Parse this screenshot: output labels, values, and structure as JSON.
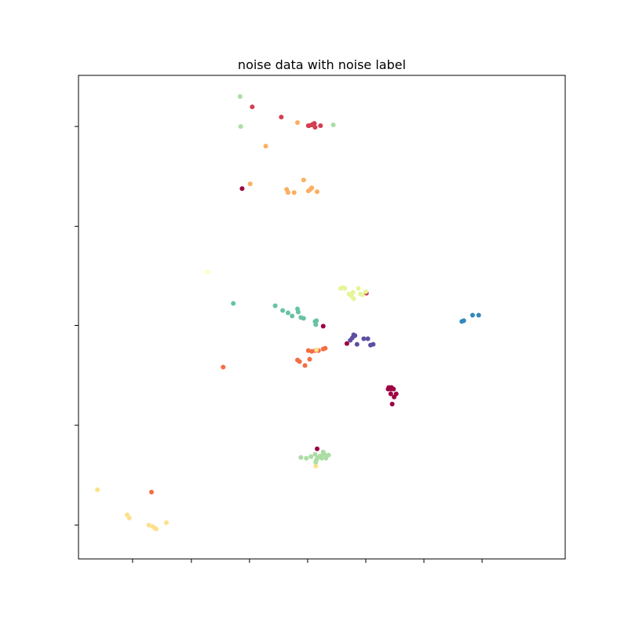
{
  "chart_data": {
    "type": "scatter",
    "title": "noise data with noise label",
    "xlabel": "",
    "ylabel": "",
    "xlim": [
      0,
      720
    ],
    "ylim": [
      0,
      615
    ],
    "grid": false,
    "legend": "none",
    "xticks": [
      80,
      167,
      253,
      339,
      425,
      511,
      597
    ],
    "yticks": [
      43,
      170,
      297,
      423,
      550
    ],
    "series": [
      {
        "color": "#9e0142",
        "points": [
          [
            242,
            471
          ],
          [
            362,
            296
          ],
          [
            397,
            274
          ],
          [
            458,
            216
          ],
          [
            459,
            218
          ],
          [
            462,
            216
          ],
          [
            466,
            216
          ],
          [
            463,
            218
          ],
          [
            462,
            210
          ],
          [
            470,
            210
          ],
          [
            467,
            206
          ],
          [
            464,
            197
          ],
          [
            353,
            140
          ]
        ]
      },
      {
        "color": "#d53e4f",
        "points": [
          [
            257,
            575
          ],
          [
            300,
            562
          ],
          [
            340,
            551
          ],
          [
            341,
            551
          ],
          [
            345,
            552
          ],
          [
            349,
            554
          ],
          [
            347,
            553
          ],
          [
            350,
            549
          ],
          [
            358,
            551
          ],
          [
            426,
            338
          ]
        ]
      },
      {
        "color": "#f46d43",
        "points": [
          [
            214,
            244
          ],
          [
            324,
            253
          ],
          [
            327,
            251
          ],
          [
            335,
            246
          ],
          [
            342,
            254
          ],
          [
            340,
            265
          ],
          [
            345,
            264
          ],
          [
            350,
            265
          ],
          [
            355,
            265
          ],
          [
            362,
            267
          ],
          [
            365,
            268
          ],
          [
            108,
            85
          ]
        ]
      },
      {
        "color": "#fdae61",
        "points": [
          [
            277,
            525
          ],
          [
            254,
            477
          ],
          [
            308,
            470
          ],
          [
            310,
            466
          ],
          [
            319,
            466
          ],
          [
            333,
            482
          ],
          [
            340,
            468
          ],
          [
            343,
            470
          ],
          [
            345,
            472
          ],
          [
            353,
            467
          ],
          [
            324,
            555
          ]
        ]
      },
      {
        "color": "#fee08b",
        "points": [
          [
            28,
            88
          ],
          [
            72,
            56
          ],
          [
            75,
            52
          ],
          [
            104,
            43
          ],
          [
            110,
            41
          ],
          [
            113,
            39
          ],
          [
            115,
            38
          ],
          [
            130,
            46
          ],
          [
            352,
            266
          ],
          [
            351,
            118
          ]
        ]
      },
      {
        "color": "#ffffbf",
        "points": [
          [
            191,
            365
          ]
        ]
      },
      {
        "color": "#e6f598",
        "points": [
          [
            388,
            344
          ],
          [
            392,
            345
          ],
          [
            394,
            344
          ],
          [
            400,
            337
          ],
          [
            406,
            339
          ],
          [
            404,
            334
          ],
          [
            407,
            331
          ],
          [
            414,
            344
          ],
          [
            417,
            337
          ],
          [
            420,
            336
          ],
          [
            425,
            340
          ]
        ]
      },
      {
        "color": "#abdda4",
        "points": [
          [
            239,
            588
          ],
          [
            240,
            550
          ],
          [
            377,
            552
          ],
          [
            329,
            129
          ],
          [
            337,
            128
          ],
          [
            344,
            130
          ],
          [
            350,
            133
          ],
          [
            354,
            129
          ],
          [
            358,
            131
          ],
          [
            362,
            136
          ],
          [
            364,
            133
          ],
          [
            370,
            132
          ],
          [
            366,
            128
          ],
          [
            360,
            128
          ],
          [
            351,
            123
          ],
          [
            352,
            126
          ]
        ]
      },
      {
        "color": "#66c2a5",
        "points": [
          [
            229,
            325
          ],
          [
            291,
            322
          ],
          [
            302,
            316
          ],
          [
            310,
            313
          ],
          [
            316,
            309
          ],
          [
            325,
            314
          ],
          [
            329,
            307
          ],
          [
            333,
            306
          ],
          [
            350,
            302
          ],
          [
            352,
            303
          ],
          [
            351,
            298
          ],
          [
            324,
            318
          ]
        ]
      },
      {
        "color": "#3288bd",
        "points": [
          [
            567,
            302
          ],
          [
            570,
            303
          ],
          [
            583,
            310
          ],
          [
            592,
            310
          ]
        ]
      },
      {
        "color": "#5e4fa2",
        "points": [
          [
            402,
            278
          ],
          [
            405,
            281
          ],
          [
            407,
            285
          ],
          [
            409,
            284
          ],
          [
            412,
            273
          ],
          [
            422,
            280
          ],
          [
            428,
            280
          ],
          [
            432,
            272
          ],
          [
            436,
            273
          ]
        ]
      }
    ]
  }
}
